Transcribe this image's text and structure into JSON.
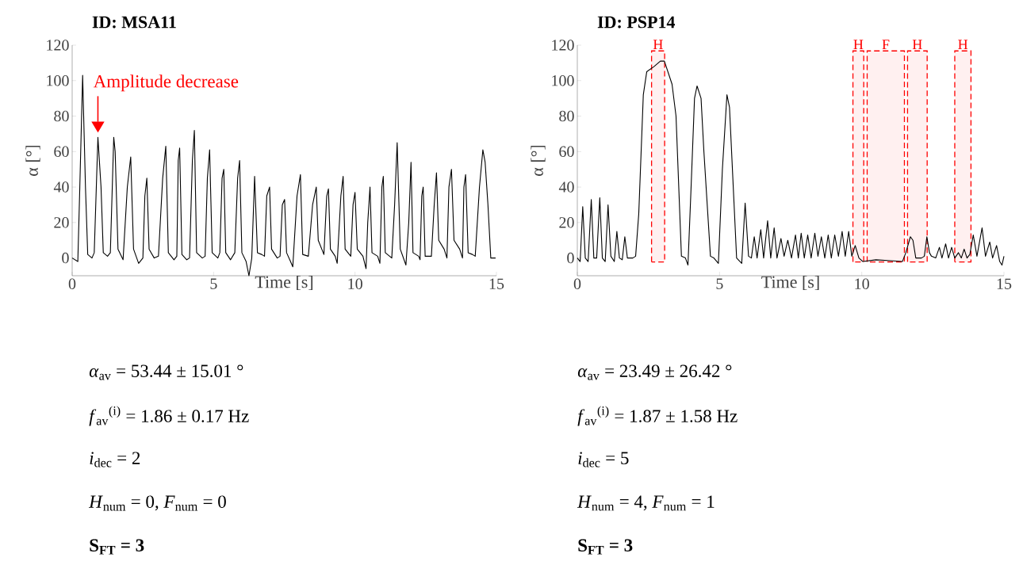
{
  "chart_data": [
    {
      "type": "line",
      "title": "ID: MSA11",
      "xlabel": "Time [s]",
      "ylabel": "α [°]",
      "xlim": [
        0,
        15
      ],
      "ylim": [
        -10,
        120
      ],
      "xticks": [
        0,
        5,
        10,
        15
      ],
      "yticks": [
        0,
        20,
        40,
        60,
        80,
        100,
        120
      ],
      "series": [
        {
          "color": "#000000",
          "x": [
            0,
            0.2,
            0.27,
            0.37,
            0.47,
            0.55,
            0.7,
            0.78,
            0.91,
            1.02,
            1.1,
            1.25,
            1.35,
            1.47,
            1.52,
            1.62,
            1.8,
            1.95,
            2.07,
            2.17,
            2.35,
            2.5,
            2.57,
            2.64,
            2.72,
            2.9,
            3.05,
            3.2,
            3.31,
            3.4,
            3.6,
            3.7,
            3.75,
            3.8,
            3.88,
            4.05,
            4.15,
            4.25,
            4.32,
            4.4,
            4.6,
            4.7,
            4.78,
            4.86,
            4.95,
            5.15,
            5.22,
            5.3,
            5.36,
            5.43,
            5.6,
            5.75,
            5.85,
            5.92,
            6.0,
            6.15,
            6.25,
            6.35,
            6.45,
            6.55,
            6.7,
            6.8,
            6.88,
            6.98,
            7.05,
            7.25,
            7.35,
            7.43,
            7.51,
            7.58,
            7.72,
            7.8,
            7.95,
            8.07,
            8.15,
            8.35,
            8.5,
            8.63,
            8.7,
            8.9,
            9.0,
            9.06,
            9.13,
            9.3,
            9.37,
            9.5,
            9.58,
            9.65,
            9.85,
            9.93,
            10.0,
            10.08,
            10.28,
            10.39,
            10.45,
            10.53,
            10.6,
            10.8,
            10.88,
            10.95,
            11.0,
            11.07,
            11.3,
            11.4,
            11.49,
            11.6,
            11.8,
            11.9,
            11.98,
            12.05,
            12.25,
            12.3,
            12.36,
            12.41,
            12.48,
            12.7,
            12.8,
            12.88,
            12.96,
            13.15,
            13.25,
            13.32,
            13.41,
            13.5,
            13.7,
            13.8,
            13.85,
            13.91,
            14.0,
            14.15,
            14.25,
            14.4,
            14.52,
            14.6,
            14.7,
            14.8,
            14.97
          ],
          "values": [
            0,
            -2,
            40,
            103,
            40,
            2,
            0,
            3,
            68,
            40,
            3,
            1,
            3,
            68,
            60,
            5,
            -1,
            40,
            57,
            5,
            -3,
            0,
            35,
            45,
            5,
            0,
            1,
            45,
            63,
            3,
            -1,
            1,
            55,
            62,
            2,
            -1,
            0,
            55,
            72,
            3,
            0,
            1,
            45,
            61,
            3,
            0,
            3,
            45,
            50,
            3,
            -1,
            3,
            45,
            55,
            3,
            -2,
            -10,
            0,
            46,
            3,
            2,
            1,
            35,
            40,
            5,
            0,
            1,
            30,
            33,
            3,
            -2,
            -5,
            35,
            47,
            2,
            1,
            30,
            40,
            10,
            2,
            35,
            39,
            5,
            1,
            -3,
            35,
            46,
            5,
            1,
            30,
            37,
            5,
            1,
            -6,
            20,
            40,
            3,
            1,
            -3,
            40,
            46,
            3,
            0,
            30,
            65,
            5,
            -4,
            20,
            54,
            3,
            1,
            -1,
            35,
            40,
            1,
            1,
            30,
            48,
            10,
            5,
            0,
            40,
            50,
            10,
            5,
            0,
            40,
            47,
            3,
            2,
            1,
            40,
            61,
            54,
            30,
            0,
            0
          ]
        }
      ],
      "annotations": [
        {
          "text": "Amplitude decrease",
          "x": 0.91,
          "y": 68
        },
        "*α*$_{av}$ = 53.44 ± 15.01 °",
        "*f*$_{av}$$^{(i)}$ = 1.86 ± 0.17 Hz",
        "*i*$_{dec}$ = 2",
        "*H*$_{num}$ = 0,  *F*$_{num}$ = 0",
        "**S$_{FT}$ = 3**"
      ]
    },
    {
      "type": "line",
      "title": "ID: PSP14",
      "xlabel": "Time [s]",
      "ylabel": "α [°]",
      "xlim": [
        0,
        15
      ],
      "ylim": [
        -10,
        120
      ],
      "xticks": [
        0,
        5,
        10,
        15
      ],
      "yticks": [
        0,
        20,
        40,
        60,
        80,
        100,
        120
      ],
      "series": [
        {
          "color": "#000000",
          "x": [
            0,
            0.1,
            0.19,
            0.28,
            0.38,
            0.49,
            0.58,
            0.68,
            0.79,
            0.88,
            0.98,
            1.08,
            1.18,
            1.3,
            1.39,
            1.48,
            1.58,
            1.67,
            1.76,
            1.95,
            2.05,
            2.16,
            2.32,
            2.44,
            2.7,
            2.92,
            3.06,
            3.33,
            3.47,
            3.66,
            3.8,
            3.89,
            4.0,
            4.12,
            4.21,
            4.35,
            4.45,
            4.68,
            4.8,
            4.96,
            5.1,
            5.26,
            5.35,
            5.6,
            5.78,
            5.9,
            6.02,
            6.12,
            6.22,
            6.32,
            6.45,
            6.55,
            6.69,
            6.8,
            6.92,
            7.02,
            7.16,
            7.27,
            7.4,
            7.53,
            7.67,
            7.77,
            7.87,
            7.98,
            8.1,
            8.22,
            8.35,
            8.46,
            8.58,
            8.7,
            8.82,
            8.93,
            9.05,
            9.18,
            9.31,
            9.42,
            9.54,
            9.65,
            9.77,
            9.9,
            10.04,
            10.5,
            11.0,
            11.43,
            11.55,
            11.71,
            11.8,
            11.9,
            12.1,
            12.2,
            12.29,
            12.38,
            12.45,
            12.6,
            12.73,
            12.82,
            12.95,
            13.05,
            13.16,
            13.27,
            13.4,
            13.5,
            13.6,
            13.7,
            13.8,
            13.92,
            14.05,
            14.23,
            14.35,
            14.5,
            14.6,
            14.74,
            14.85,
            14.93,
            15
          ],
          "values": [
            0,
            -2,
            29,
            0,
            -2,
            33,
            0,
            0,
            34,
            0,
            -2,
            30,
            1,
            -2,
            15,
            0,
            -1,
            12,
            0,
            0,
            1,
            25,
            92,
            105,
            108,
            111,
            111,
            98,
            80,
            1,
            0,
            -4,
            40,
            90,
            97,
            90,
            60,
            1,
            0,
            -3,
            50,
            92,
            85,
            0,
            -3,
            31,
            1,
            0,
            12,
            0,
            16,
            0,
            21,
            0,
            17,
            0,
            11,
            1,
            10,
            0,
            13,
            0,
            14,
            0,
            13,
            0,
            14,
            1,
            12,
            0,
            13,
            0,
            13,
            1,
            15,
            1,
            15,
            1,
            7,
            0,
            -2,
            -1,
            -1.5,
            -2,
            3,
            12,
            10,
            0,
            0,
            1,
            12,
            3,
            1,
            0,
            6,
            0,
            8,
            0,
            6,
            0,
            3,
            0,
            5,
            0,
            2,
            13,
            1,
            17,
            1,
            9,
            0,
            7,
            -2,
            -4,
            1
          ]
        }
      ],
      "bands": [
        {
          "axis": "x",
          "from": 2.61,
          "to": 3.07,
          "label": "H",
          "color": "#ff0000"
        },
        {
          "axis": "x",
          "from": 9.69,
          "to": 10.07,
          "label": "H",
          "color": "#ff0000"
        },
        {
          "axis": "x",
          "from": 10.19,
          "to": 11.5,
          "label": "F",
          "color": "#ff0000"
        },
        {
          "axis": "x",
          "from": 11.61,
          "to": 12.3,
          "label": "H",
          "color": "#ff0000"
        },
        {
          "axis": "x",
          "from": 13.27,
          "to": 13.84,
          "label": "H",
          "color": "#ff0000"
        }
      ],
      "annotations": [
        "*α*$_{av}$ = 23.49 ± 26.42 °",
        "*f*$_{av}$$^{(i)}$ = 1.87 ± 1.58 Hz",
        "*i*$_{dec}$ = 5",
        "*H*$_{num}$ = 4,  *F*$_{num}$ = 1",
        "**S$_{FT}$ = 3**"
      ]
    }
  ]
}
